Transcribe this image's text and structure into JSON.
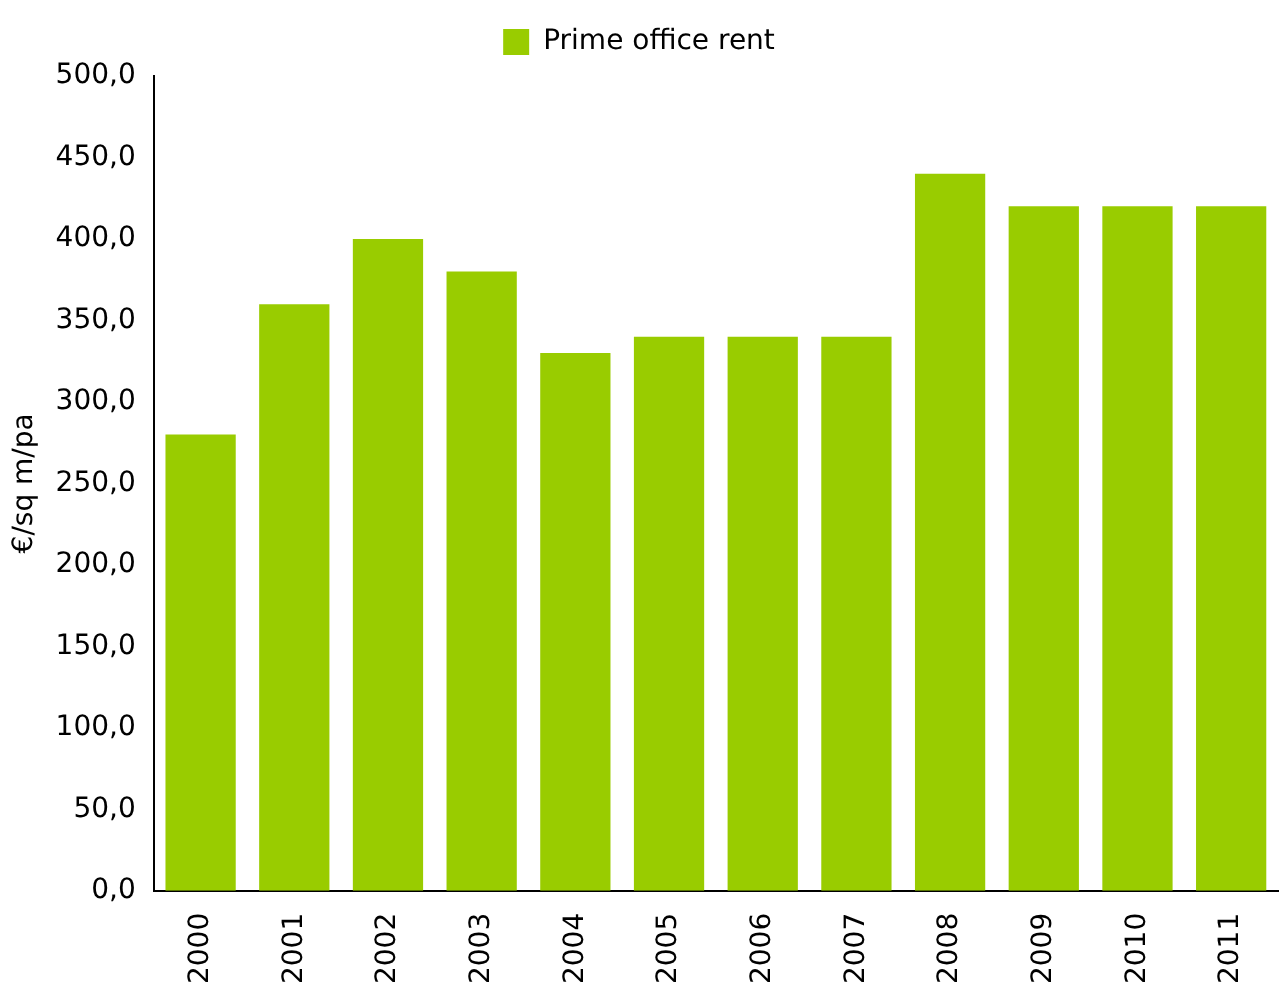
{
  "chart_data": {
    "type": "bar",
    "ylabel": "€/sq m/pa",
    "categories": [
      "2000",
      "2001",
      "2002",
      "2003",
      "2004",
      "2005",
      "2006",
      "2007",
      "2008",
      "2009",
      "2010",
      "2011"
    ],
    "series": [
      {
        "name": "Prime office rent",
        "color": "#99cc00",
        "values": [
          280,
          360,
          400,
          380,
          330,
          340,
          340,
          340,
          440,
          420,
          420,
          420
        ]
      }
    ],
    "ylim": [
      0,
      500
    ],
    "yticks": [
      {
        "value": 0,
        "label": "0,0"
      },
      {
        "value": 50,
        "label": "50,0"
      },
      {
        "value": 100,
        "label": "100,0"
      },
      {
        "value": 150,
        "label": "150,0"
      },
      {
        "value": 200,
        "label": "200,0"
      },
      {
        "value": 250,
        "label": "250,0"
      },
      {
        "value": 300,
        "label": "300,0"
      },
      {
        "value": 350,
        "label": "350,0"
      },
      {
        "value": 400,
        "label": "400,0"
      },
      {
        "value": 450,
        "label": "450,0"
      },
      {
        "value": 500,
        "label": "500,0"
      }
    ],
    "grid": false,
    "legend": "top"
  }
}
